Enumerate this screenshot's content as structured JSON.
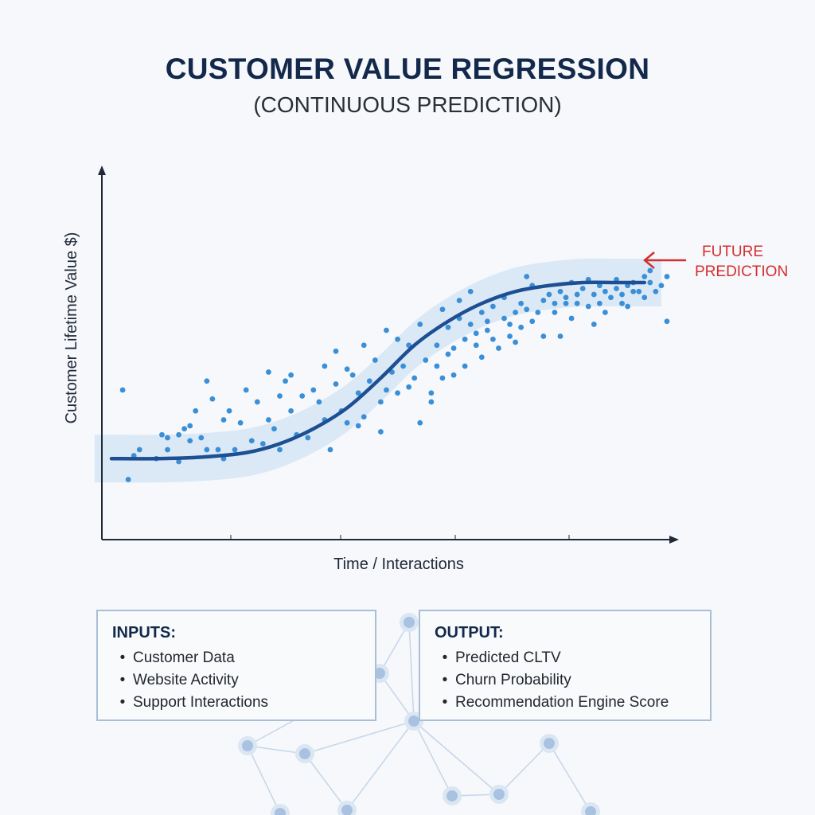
{
  "title": "CUSTOMER VALUE REGRESSION",
  "subtitle": "(CONTINUOUS PREDICTION)",
  "chart_data": {
    "type": "scatter",
    "xlabel": "Time / Interactions",
    "ylabel": "Customer Lifetime Value $)",
    "annotation": "FUTURE\nPREDICTION",
    "xlim": [
      0,
      100
    ],
    "ylim": [
      0,
      100
    ],
    "grid": false,
    "legend": "none",
    "series": [
      {
        "type": "scatter",
        "color": "#3b8fd6",
        "points": [
          [
            2,
            40
          ],
          [
            3,
            10
          ],
          [
            4,
            18
          ],
          [
            5,
            20
          ],
          [
            8,
            17
          ],
          [
            9,
            25
          ],
          [
            10,
            20
          ],
          [
            10,
            24
          ],
          [
            12,
            16
          ],
          [
            12,
            25
          ],
          [
            13,
            27
          ],
          [
            14,
            28
          ],
          [
            14,
            23
          ],
          [
            15,
            33
          ],
          [
            16,
            24
          ],
          [
            17,
            20
          ],
          [
            17,
            43
          ],
          [
            18,
            37
          ],
          [
            19,
            20
          ],
          [
            20,
            30
          ],
          [
            20,
            17
          ],
          [
            21,
            33
          ],
          [
            22,
            20
          ],
          [
            23,
            29
          ],
          [
            24,
            40
          ],
          [
            25,
            23
          ],
          [
            26,
            36
          ],
          [
            27,
            22
          ],
          [
            28,
            30
          ],
          [
            28,
            46
          ],
          [
            29,
            27
          ],
          [
            30,
            20
          ],
          [
            30,
            38
          ],
          [
            31,
            43
          ],
          [
            32,
            45
          ],
          [
            32,
            33
          ],
          [
            33,
            25
          ],
          [
            34,
            38
          ],
          [
            35,
            24
          ],
          [
            36,
            40
          ],
          [
            37,
            36
          ],
          [
            38,
            48
          ],
          [
            38,
            30
          ],
          [
            39,
            20
          ],
          [
            40,
            53
          ],
          [
            40,
            42
          ],
          [
            41,
            33
          ],
          [
            42,
            29
          ],
          [
            42,
            47
          ],
          [
            43,
            45
          ],
          [
            44,
            39
          ],
          [
            44,
            28
          ],
          [
            45,
            55
          ],
          [
            45,
            31
          ],
          [
            46,
            43
          ],
          [
            47,
            50
          ],
          [
            48,
            36
          ],
          [
            48,
            26
          ],
          [
            49,
            40
          ],
          [
            49,
            60
          ],
          [
            50,
            46
          ],
          [
            51,
            57
          ],
          [
            51,
            39
          ],
          [
            52,
            48
          ],
          [
            53,
            41
          ],
          [
            53,
            55
          ],
          [
            54,
            44
          ],
          [
            55,
            29
          ],
          [
            55,
            62
          ],
          [
            56,
            50
          ],
          [
            57,
            39
          ],
          [
            57,
            36
          ],
          [
            58,
            55
          ],
          [
            58,
            48
          ],
          [
            59,
            67
          ],
          [
            59,
            44
          ],
          [
            60,
            52
          ],
          [
            60,
            61
          ],
          [
            61,
            54
          ],
          [
            61,
            45
          ],
          [
            62,
            70
          ],
          [
            62,
            64
          ],
          [
            63,
            57
          ],
          [
            63,
            48
          ],
          [
            64,
            62
          ],
          [
            64,
            73
          ],
          [
            65,
            55
          ],
          [
            65,
            59
          ],
          [
            66,
            66
          ],
          [
            66,
            51
          ],
          [
            67,
            60
          ],
          [
            67,
            63
          ],
          [
            68,
            57
          ],
          [
            68,
            68
          ],
          [
            69,
            54
          ],
          [
            70,
            64
          ],
          [
            70,
            71
          ],
          [
            71,
            62
          ],
          [
            71,
            58
          ],
          [
            72,
            66
          ],
          [
            72,
            56
          ],
          [
            73,
            69
          ],
          [
            73,
            61
          ],
          [
            74,
            67
          ],
          [
            74,
            78
          ],
          [
            75,
            63
          ],
          [
            75,
            75
          ],
          [
            76,
            66
          ],
          [
            77,
            70
          ],
          [
            77,
            58
          ],
          [
            78,
            72
          ],
          [
            79,
            69
          ],
          [
            79,
            66
          ],
          [
            80,
            73
          ],
          [
            80,
            58
          ],
          [
            81,
            71
          ],
          [
            81,
            69
          ],
          [
            82,
            76
          ],
          [
            82,
            64
          ],
          [
            83,
            72
          ],
          [
            83,
            69
          ],
          [
            84,
            74
          ],
          [
            85,
            68
          ],
          [
            85,
            77
          ],
          [
            86,
            72
          ],
          [
            86,
            62
          ],
          [
            87,
            69
          ],
          [
            87,
            75
          ],
          [
            88,
            73
          ],
          [
            88,
            66
          ],
          [
            89,
            71
          ],
          [
            90,
            74
          ],
          [
            90,
            77
          ],
          [
            91,
            69
          ],
          [
            91,
            72
          ],
          [
            92,
            75
          ],
          [
            92,
            68
          ],
          [
            93,
            76
          ],
          [
            93,
            73
          ],
          [
            94,
            73
          ],
          [
            95,
            78
          ],
          [
            95,
            71
          ],
          [
            96,
            76
          ],
          [
            96,
            80
          ],
          [
            97,
            73
          ],
          [
            98,
            75
          ],
          [
            99,
            78
          ],
          [
            99,
            63
          ]
        ]
      },
      {
        "type": "line",
        "name": "",
        "color": "#1d4f93",
        "x": [
          0,
          8,
          16,
          24,
          30,
          36,
          42,
          48,
          54,
          60,
          66,
          72,
          78,
          84,
          90,
          95
        ],
        "y": [
          17,
          17,
          17.5,
          19,
          22,
          27,
          34,
          44,
          55,
          63,
          69,
          73,
          75,
          76,
          76,
          76
        ]
      }
    ],
    "confidence_band": {
      "color": "#d6e6f6",
      "half_width": 8
    }
  },
  "inputs": {
    "heading": "INPUTS:",
    "items": [
      "Customer Data",
      "Website Activity",
      "Support Interactions"
    ]
  },
  "output": {
    "heading": "OUTPUT:",
    "items": [
      "Predicted CLTV",
      "Churn Probability",
      "Recommendation Engine Score"
    ]
  },
  "bullet": "•"
}
